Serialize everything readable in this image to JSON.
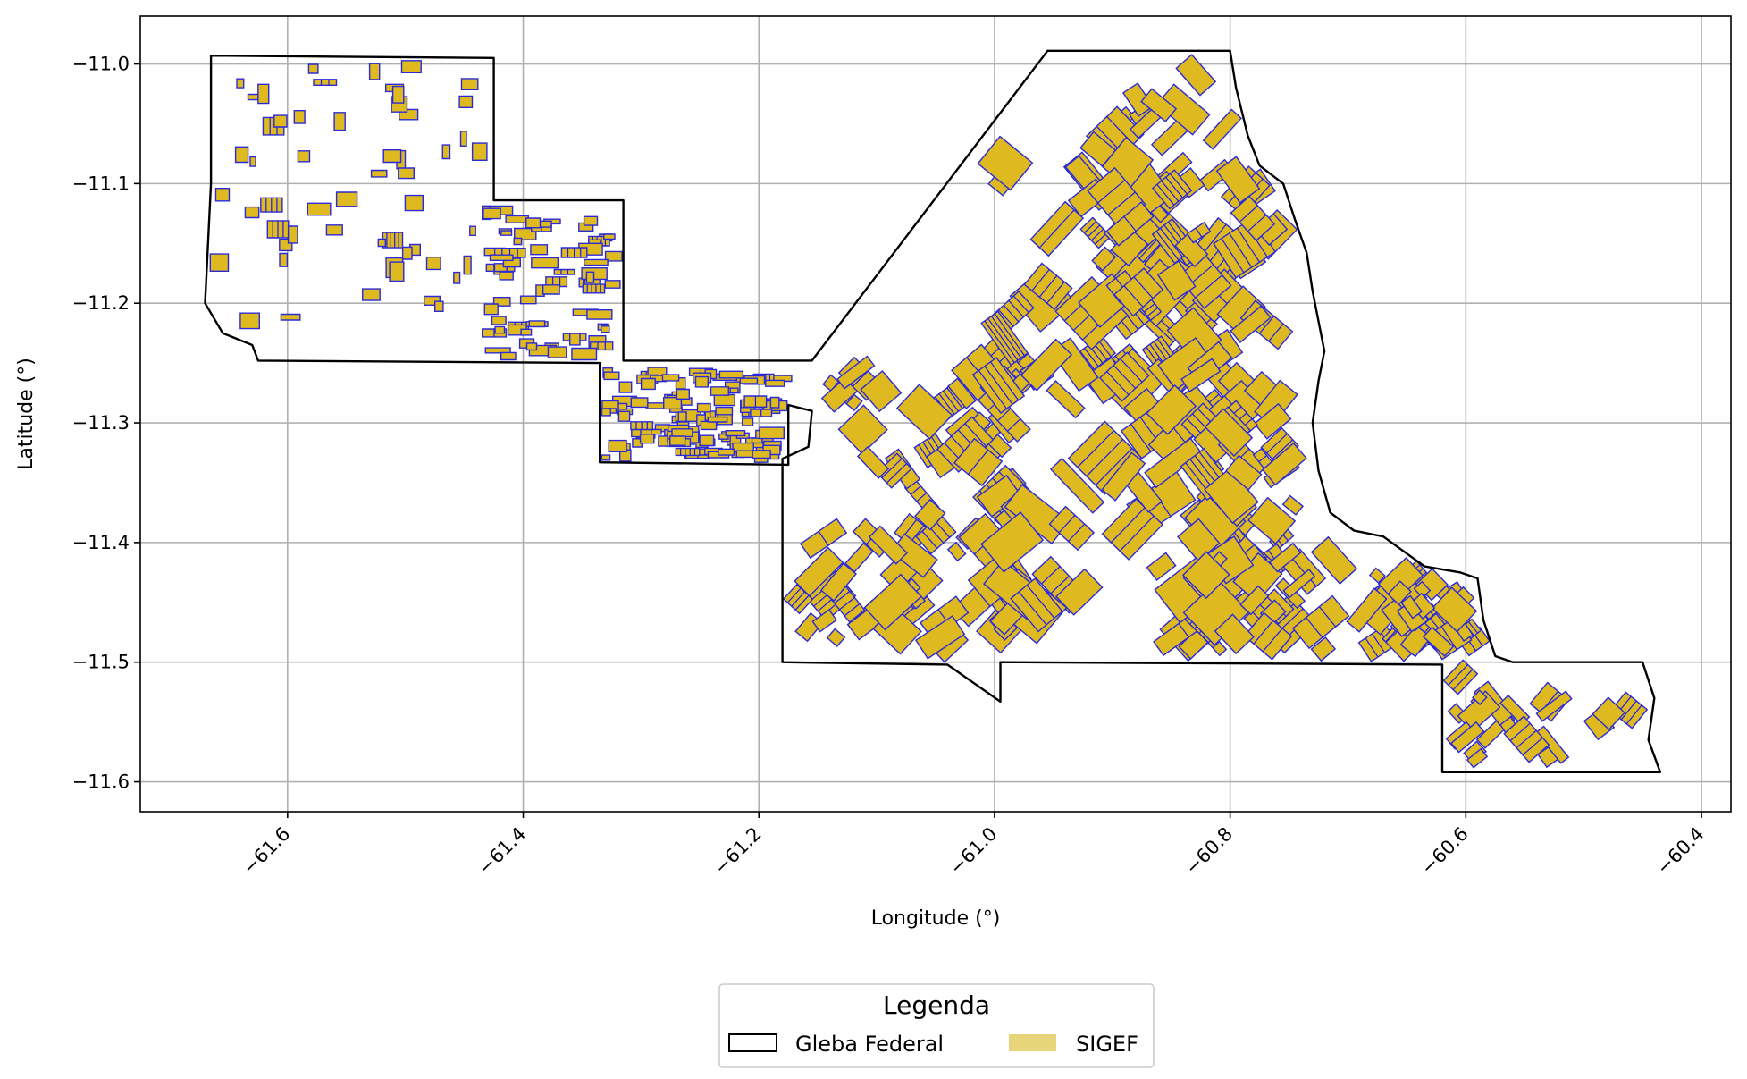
{
  "chart_data": {
    "type": "map",
    "xlabel": "Longitude (°)",
    "ylabel": "Latitude (°)",
    "xlim": [
      -61.725,
      -60.375
    ],
    "ylim": [
      -11.625,
      -10.96
    ],
    "x_ticks": [
      {
        "value": -61.6,
        "label": "−61.6"
      },
      {
        "value": -61.4,
        "label": "−61.4"
      },
      {
        "value": -61.2,
        "label": "−61.2"
      },
      {
        "value": -61.0,
        "label": "−61.0"
      },
      {
        "value": -60.8,
        "label": "−60.8"
      },
      {
        "value": -60.6,
        "label": "−60.6"
      },
      {
        "value": -60.4,
        "label": "−60.4"
      }
    ],
    "y_ticks": [
      {
        "value": -11.0,
        "label": "−11.0"
      },
      {
        "value": -11.1,
        "label": "−11.1"
      },
      {
        "value": -11.2,
        "label": "−11.2"
      },
      {
        "value": -11.3,
        "label": "−11.3"
      },
      {
        "value": -11.4,
        "label": "−11.4"
      },
      {
        "value": -11.5,
        "label": "−11.5"
      },
      {
        "value": -11.6,
        "label": "−11.6"
      }
    ],
    "x_tick_rotation_deg": 45,
    "grid": true,
    "legend": {
      "title": "Legenda",
      "placement": "bottom-center",
      "entries": [
        {
          "label": "Gleba Federal",
          "fill": "#ffffff",
          "edge": "#000000"
        },
        {
          "label": "SIGEF",
          "fill": "#e8d47a",
          "edge": "#e8d47a"
        }
      ]
    },
    "colors": {
      "gleba_edge": "#000000",
      "sigef_fill": "#dfb920",
      "sigef_edge": "#2a2ad8",
      "grid": "#b0b0b0"
    },
    "gleba_outline": [
      [
        -61.665,
        -10.993
      ],
      [
        -61.425,
        -10.995
      ],
      [
        -61.425,
        -11.114
      ],
      [
        -61.315,
        -11.114
      ],
      [
        -61.315,
        -11.248
      ],
      [
        -61.155,
        -11.248
      ],
      [
        -60.955,
        -10.989
      ],
      [
        -60.8,
        -10.989
      ],
      [
        -60.795,
        -11.02
      ],
      [
        -60.785,
        -11.06
      ],
      [
        -60.775,
        -11.085
      ],
      [
        -60.755,
        -11.1
      ],
      [
        -60.745,
        -11.13
      ],
      [
        -60.735,
        -11.158
      ],
      [
        -60.73,
        -11.19
      ],
      [
        -60.725,
        -11.215
      ],
      [
        -60.72,
        -11.24
      ],
      [
        -60.725,
        -11.265
      ],
      [
        -60.73,
        -11.3
      ],
      [
        -60.725,
        -11.34
      ],
      [
        -60.715,
        -11.375
      ],
      [
        -60.695,
        -11.39
      ],
      [
        -60.67,
        -11.395
      ],
      [
        -60.635,
        -11.42
      ],
      [
        -60.605,
        -11.425
      ],
      [
        -60.59,
        -11.43
      ],
      [
        -60.585,
        -11.465
      ],
      [
        -60.575,
        -11.495
      ],
      [
        -60.56,
        -11.5
      ],
      [
        -60.45,
        -11.5
      ],
      [
        -60.44,
        -11.53
      ],
      [
        -60.445,
        -11.565
      ],
      [
        -60.435,
        -11.592
      ],
      [
        -60.62,
        -11.592
      ],
      [
        -60.62,
        -11.502
      ],
      [
        -60.995,
        -11.5
      ],
      [
        -60.995,
        -11.533
      ],
      [
        -61.04,
        -11.502
      ],
      [
        -61.18,
        -11.5
      ],
      [
        -61.18,
        -11.33
      ],
      [
        -61.158,
        -11.32
      ],
      [
        -61.155,
        -11.29
      ],
      [
        -61.175,
        -11.285
      ],
      [
        -61.175,
        -11.335
      ],
      [
        -61.335,
        -11.333
      ],
      [
        -61.335,
        -11.25
      ],
      [
        -61.625,
        -11.248
      ],
      [
        -61.63,
        -11.235
      ],
      [
        -61.655,
        -11.225
      ],
      [
        -61.67,
        -11.2
      ],
      [
        -61.665,
        -11.1
      ]
    ],
    "sigef_parcel_count_visible": "many (hundreds)"
  }
}
